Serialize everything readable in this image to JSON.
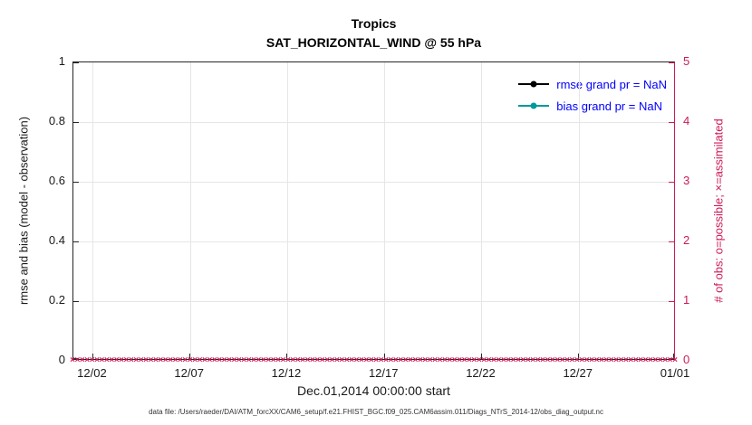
{
  "figure": {
    "title_line1": "Tropics",
    "title_line2": "SAT_HORIZONTAL_WIND @ 55 hPa",
    "footer": "data file: /Users/raeder/DAI/ATM_forcXX/CAM6_setup/f.e21.FHIST_BGC.f09_025.CAM6assim.011/Diags_NTrS_2014-12/obs_diag_output.nc"
  },
  "colors": {
    "accent_crimson": "#cc1a55",
    "bias_teal": "#009999",
    "rmse_black": "#000000",
    "legend_text_blue": "#0000ff",
    "grid": "#e6e6e6",
    "axis": "#262626"
  },
  "legend": {
    "text_color": "#0000ff",
    "items": [
      {
        "label": "rmse grand pr = NaN",
        "color": "#000000",
        "marker": "circle"
      },
      {
        "label": "bias grand pr = NaN",
        "color": "#009999",
        "marker": "circle"
      }
    ]
  },
  "chart_data": {
    "type": "line",
    "title": "Tropics",
    "subtitle": "SAT_HORIZONTAL_WIND @ 55 hPa",
    "xlabel": "Dec.01,2014 00:00:00 start",
    "ylabel_left": "rmse and bias (model - observation)",
    "ylabel_right": "# of obs: o=possible; ×=assimilated",
    "grid": true,
    "legend_position": "top-right-inside",
    "x_axis": {
      "start_label": "12/01",
      "end_label": "01/01",
      "range_days": [
        0,
        31
      ],
      "ticks": [
        {
          "day": 1,
          "label": "12/02"
        },
        {
          "day": 6,
          "label": "12/07"
        },
        {
          "day": 11,
          "label": "12/12"
        },
        {
          "day": 16,
          "label": "12/17"
        },
        {
          "day": 21,
          "label": "12/22"
        },
        {
          "day": 26,
          "label": "12/27"
        },
        {
          "day": 31,
          "label": "01/01"
        }
      ]
    },
    "y_axis_left": {
      "min": 0,
      "max": 1,
      "ticks": [
        "0",
        "0.2",
        "0.4",
        "0.6",
        "0.8",
        "1"
      ]
    },
    "y_axis_right": {
      "min": 0,
      "max": 5,
      "ticks": [
        "0",
        "1",
        "2",
        "3",
        "4",
        "5"
      ]
    },
    "series": [
      {
        "name": "rmse",
        "legend_label": "rmse grand pr = NaN",
        "color": "#000000",
        "marker": "filled-circle",
        "values": [],
        "grand_mean": "NaN"
      },
      {
        "name": "bias",
        "legend_label": "bias grand pr = NaN",
        "color": "#009999",
        "marker": "filled-circle",
        "values": [],
        "grand_mean": "NaN"
      }
    ],
    "obs_counts": {
      "axis": "right",
      "marker": "x",
      "color": "#cc1a55",
      "possible_value_at_all_times": 0,
      "assimilated_value_at_all_times": 0,
      "num_markers": 124,
      "note": "x markers drawn at y=0 (right axis) for every 6-hour bin from 12/01 to 01/01"
    }
  }
}
